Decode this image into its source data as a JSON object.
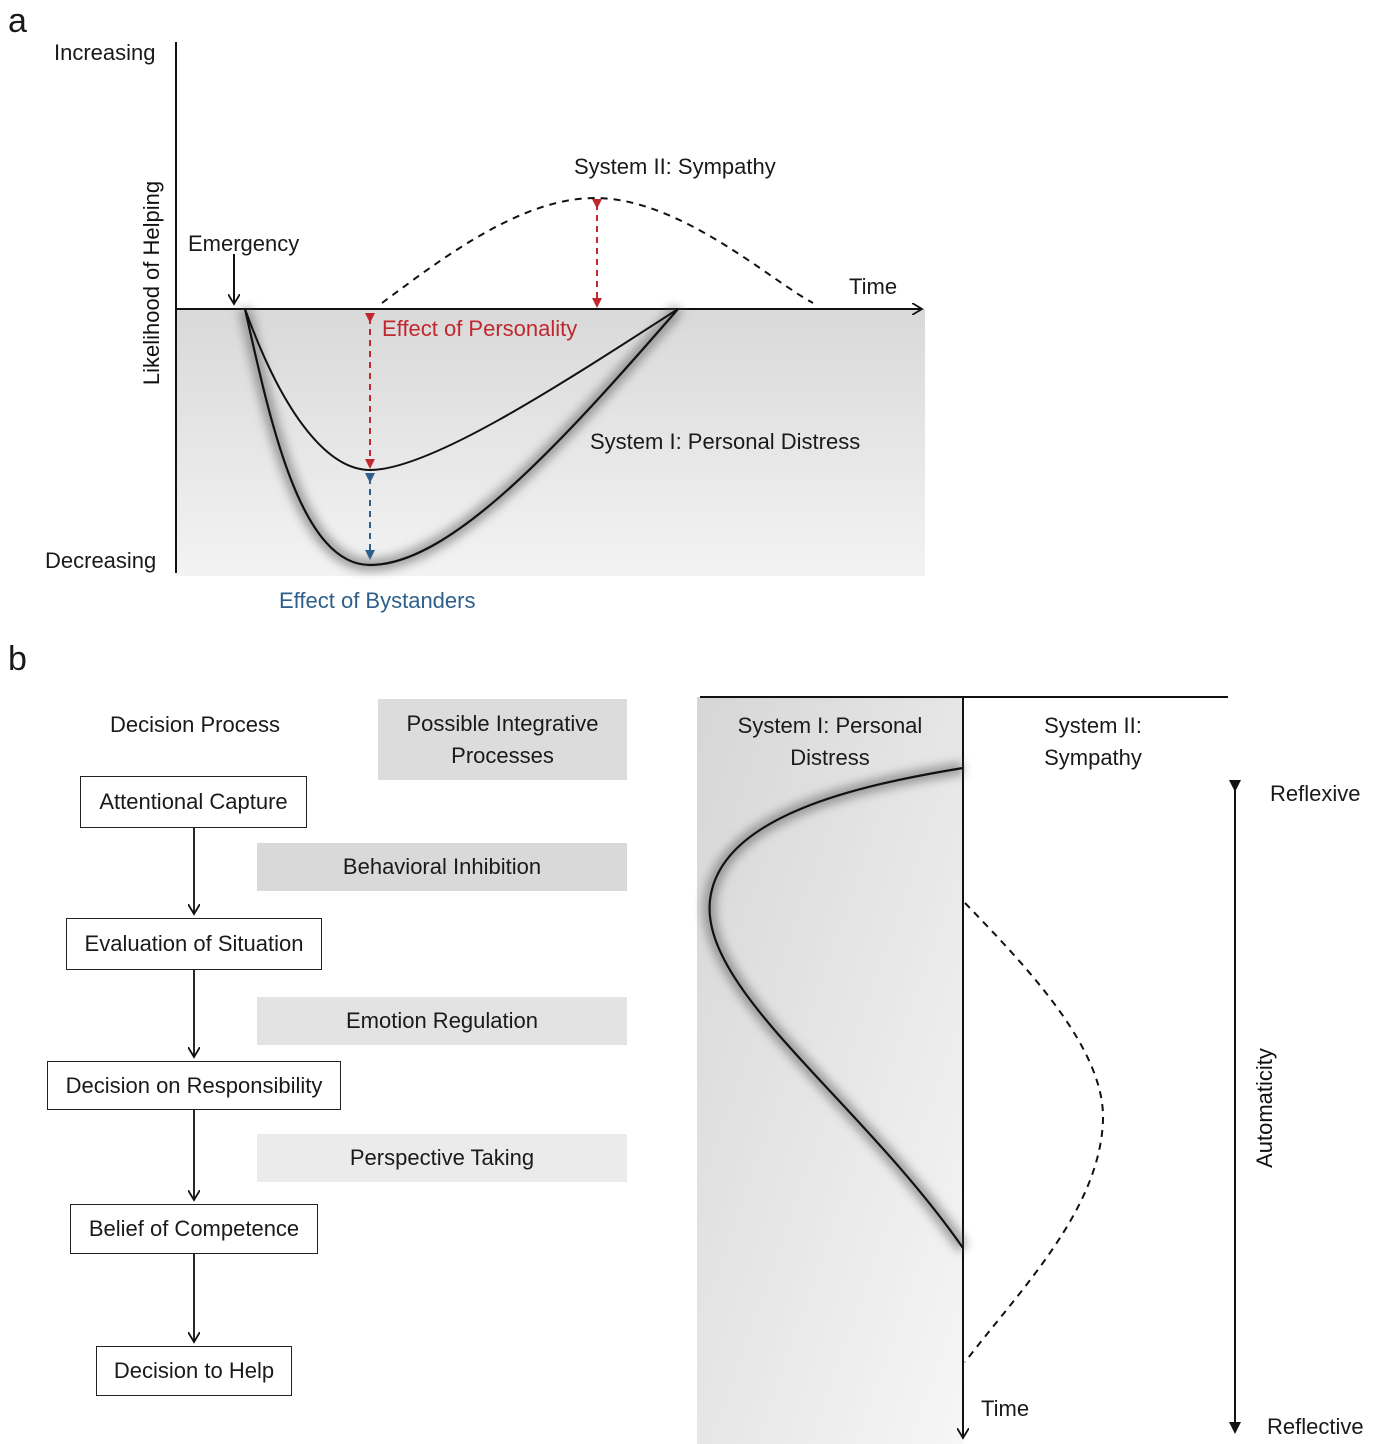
{
  "panel_a": {
    "label": "a",
    "y_top": "Increasing",
    "y_bottom": "Decreasing",
    "y_axis_label": "Likelihood of Helping",
    "x_axis_label": "Time",
    "emergency": "Emergency",
    "system2": "System II: Sympathy",
    "system1": "System I: Personal Distress",
    "effect_personality": "Effect of Personality",
    "effect_bystanders": "Effect of Bystanders"
  },
  "panel_b": {
    "label": "b",
    "decision_header": "Decision Process",
    "integrative_header": "Possible Integrative Processes",
    "steps": [
      "Attentional Capture",
      "Evaluation of Situation",
      "Decision on Responsibility",
      "Belief of Competence",
      "Decision to Help"
    ],
    "integrative": [
      "Behavioral Inhibition",
      "Emotion Regulation",
      "Perspective Taking"
    ],
    "system1_header": "System I: Personal Distress",
    "system2_header": "System II: Sympathy",
    "time_label": "Time",
    "reflexive": "Reflexive",
    "reflective": "Reflective",
    "automaticity": "Automaticity"
  },
  "colors": {
    "personality": "#c0282e",
    "bystanders": "#2d5f8a",
    "shading": "#e6e6e6"
  }
}
